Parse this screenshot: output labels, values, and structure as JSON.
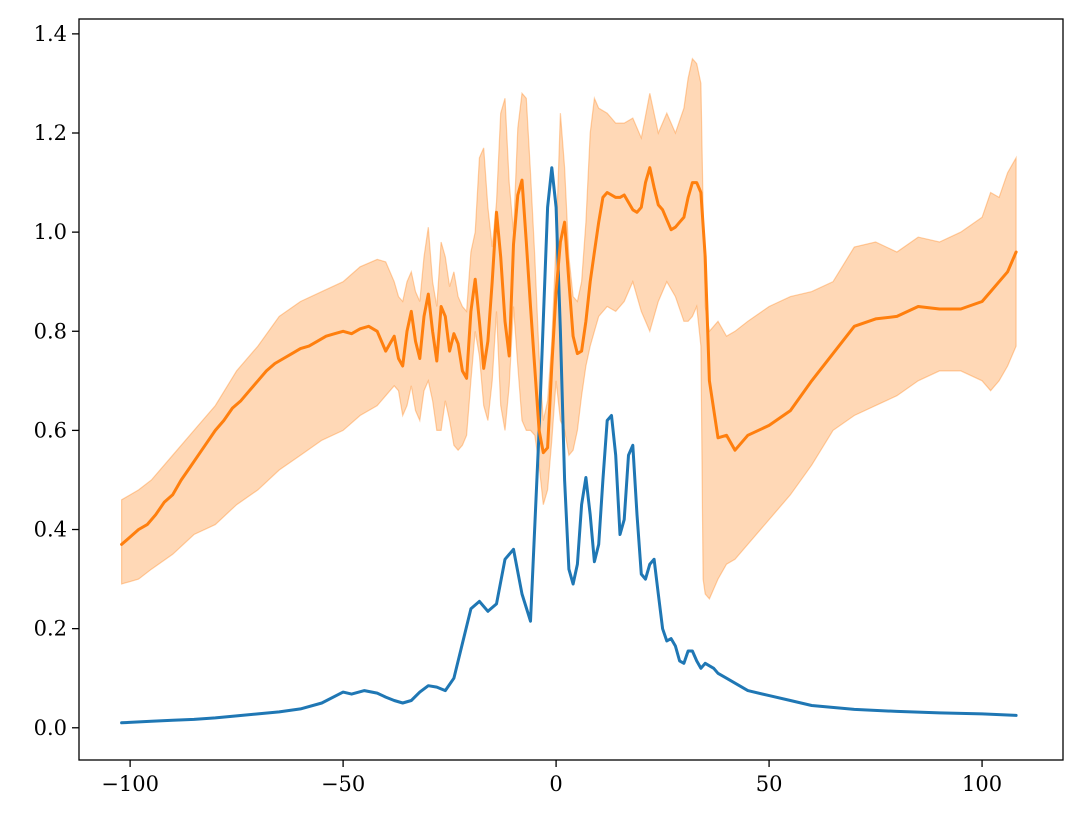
{
  "chart_data": {
    "type": "line",
    "title": "",
    "xlabel": "",
    "ylabel": "",
    "xlim": [
      -112,
      119
    ],
    "ylim": [
      -0.065,
      1.43
    ],
    "x_ticks": [
      -100,
      -50,
      0,
      50,
      100
    ],
    "x_tick_labels": [
      "−100",
      "−50",
      "0",
      "50",
      "100"
    ],
    "y_ticks": [
      0.0,
      0.2,
      0.4,
      0.6,
      0.8,
      1.0,
      1.2,
      1.4
    ],
    "y_tick_labels": [
      "0.0",
      "0.2",
      "0.4",
      "0.6",
      "0.8",
      "1.0",
      "1.2",
      "1.4"
    ],
    "grid": false,
    "legend": "none",
    "colors": {
      "series_1": "#1f77b4",
      "series_2": "#ff7f0e",
      "band": "#ff7f0e"
    },
    "series": [
      {
        "x": [
          -102,
          -95,
          -90,
          -85,
          -80,
          -75,
          -70,
          -65,
          -60,
          -55,
          -50,
          -48,
          -45,
          -42,
          -40,
          -38,
          -36,
          -34,
          -32,
          -30,
          -28,
          -26,
          -24,
          -22,
          -20,
          -18,
          -16,
          -14,
          -12,
          -10,
          -8,
          -6,
          -4,
          -2,
          -1,
          0,
          1,
          2,
          3,
          4,
          5,
          6,
          7,
          8,
          9,
          10,
          11,
          12,
          13,
          14,
          15,
          16,
          17,
          18,
          19,
          20,
          21,
          22,
          23,
          24,
          25,
          26,
          27,
          28,
          29,
          30,
          31,
          32,
          33,
          34,
          35,
          36,
          37,
          38,
          40,
          45,
          50,
          55,
          60,
          70,
          80,
          90,
          100,
          108
        ],
        "values": [
          0.01,
          0.013,
          0.015,
          0.017,
          0.02,
          0.024,
          0.028,
          0.032,
          0.038,
          0.05,
          0.072,
          0.068,
          0.075,
          0.07,
          0.062,
          0.055,
          0.05,
          0.055,
          0.072,
          0.085,
          0.082,
          0.075,
          0.1,
          0.17,
          0.24,
          0.255,
          0.235,
          0.25,
          0.34,
          0.36,
          0.27,
          0.215,
          0.6,
          1.05,
          1.13,
          1.05,
          0.8,
          0.5,
          0.32,
          0.29,
          0.33,
          0.45,
          0.505,
          0.43,
          0.335,
          0.37,
          0.5,
          0.62,
          0.63,
          0.55,
          0.39,
          0.42,
          0.55,
          0.57,
          0.43,
          0.31,
          0.3,
          0.33,
          0.34,
          0.27,
          0.2,
          0.175,
          0.18,
          0.165,
          0.135,
          0.13,
          0.155,
          0.155,
          0.135,
          0.12,
          0.13,
          0.125,
          0.12,
          0.11,
          0.1,
          0.075,
          0.065,
          0.055,
          0.045,
          0.037,
          0.033,
          0.03,
          0.028,
          0.025
        ]
      },
      {
        "x": [
          -102,
          -100,
          -98,
          -96,
          -94,
          -92,
          -90,
          -88,
          -86,
          -84,
          -82,
          -80,
          -78,
          -76,
          -74,
          -72,
          -70,
          -68,
          -66,
          -64,
          -62,
          -60,
          -58,
          -56,
          -54,
          -52,
          -50,
          -48,
          -46,
          -44,
          -42,
          -40,
          -38,
          -37,
          -36,
          -35,
          -34,
          -33,
          -32,
          -31,
          -30,
          -29,
          -28,
          -27,
          -26,
          -25,
          -24,
          -23,
          -22,
          -21,
          -20,
          -19,
          -18,
          -17,
          -16,
          -15,
          -14,
          -13,
          -12,
          -11,
          -10,
          -9,
          -8,
          -7,
          -6,
          -5,
          -4,
          -3,
          -2,
          -1,
          0,
          1,
          2,
          3,
          4,
          5,
          6,
          7,
          8,
          9,
          10,
          11,
          12,
          13,
          14,
          15,
          16,
          17,
          18,
          19,
          20,
          21,
          22,
          23,
          24,
          25,
          26,
          27,
          28,
          29,
          30,
          31,
          32,
          33,
          34,
          35,
          36,
          38,
          40,
          42,
          45,
          50,
          55,
          60,
          65,
          70,
          75,
          80,
          85,
          90,
          95,
          100,
          102,
          104,
          106,
          108
        ],
        "values": [
          0.37,
          0.385,
          0.4,
          0.41,
          0.43,
          0.455,
          0.47,
          0.5,
          0.525,
          0.55,
          0.575,
          0.6,
          0.62,
          0.645,
          0.66,
          0.68,
          0.7,
          0.72,
          0.735,
          0.745,
          0.755,
          0.765,
          0.77,
          0.78,
          0.79,
          0.795,
          0.8,
          0.795,
          0.805,
          0.81,
          0.8,
          0.76,
          0.79,
          0.745,
          0.73,
          0.8,
          0.84,
          0.78,
          0.745,
          0.83,
          0.875,
          0.8,
          0.74,
          0.85,
          0.83,
          0.76,
          0.795,
          0.775,
          0.72,
          0.705,
          0.84,
          0.905,
          0.82,
          0.725,
          0.78,
          0.9,
          1.04,
          0.95,
          0.82,
          0.75,
          0.975,
          1.075,
          1.105,
          0.98,
          0.85,
          0.725,
          0.6,
          0.555,
          0.565,
          0.73,
          0.88,
          0.98,
          1.02,
          0.9,
          0.79,
          0.755,
          0.76,
          0.82,
          0.9,
          0.96,
          1.02,
          1.07,
          1.08,
          1.075,
          1.07,
          1.07,
          1.075,
          1.06,
          1.045,
          1.04,
          1.05,
          1.1,
          1.13,
          1.09,
          1.055,
          1.045,
          1.025,
          1.005,
          1.01,
          1.02,
          1.03,
          1.07,
          1.1,
          1.1,
          1.08,
          0.95,
          0.7,
          0.585,
          0.59,
          0.56,
          0.59,
          0.61,
          0.64,
          0.7,
          0.755,
          0.81,
          0.825,
          0.83,
          0.85,
          0.845,
          0.845,
          0.86,
          0.88,
          0.9,
          0.92,
          0.96
        ]
      }
    ],
    "band": {
      "x": [
        -102,
        -98,
        -95,
        -90,
        -85,
        -80,
        -75,
        -70,
        -65,
        -60,
        -55,
        -50,
        -46,
        -42,
        -40,
        -38,
        -37,
        -36,
        -35,
        -34,
        -33,
        -32,
        -31,
        -30,
        -29,
        -28,
        -27,
        -26,
        -25,
        -24,
        -23,
        -22,
        -21,
        -20,
        -19,
        -18,
        -17,
        -16,
        -15,
        -14,
        -13,
        -12,
        -11,
        -10,
        -9,
        -8,
        -7,
        -6,
        -5,
        -4,
        -3,
        -2,
        -1,
        0,
        1,
        2,
        3,
        4,
        5,
        6,
        7,
        8,
        9,
        10,
        12,
        14,
        16,
        18,
        20,
        22,
        24,
        26,
        28,
        30,
        31,
        32,
        33,
        34,
        34.5,
        35,
        36,
        38,
        40,
        42,
        45,
        50,
        55,
        60,
        65,
        70,
        75,
        80,
        85,
        90,
        95,
        100,
        102,
        104,
        106,
        108
      ],
      "upper": [
        0.46,
        0.48,
        0.5,
        0.55,
        0.6,
        0.65,
        0.72,
        0.77,
        0.83,
        0.86,
        0.88,
        0.9,
        0.93,
        0.945,
        0.94,
        0.9,
        0.87,
        0.86,
        0.9,
        0.92,
        0.88,
        0.86,
        0.95,
        1.01,
        0.9,
        0.85,
        0.98,
        0.95,
        0.89,
        0.92,
        0.87,
        0.85,
        0.84,
        0.96,
        1.0,
        1.15,
        1.17,
        1.05,
        0.97,
        1.06,
        1.24,
        1.27,
        1.1,
        1.0,
        1.21,
        1.28,
        1.27,
        1.12,
        0.95,
        0.75,
        0.62,
        0.66,
        0.78,
        0.98,
        1.24,
        1.13,
        0.95,
        0.87,
        0.86,
        0.9,
        1.02,
        1.2,
        1.27,
        1.25,
        1.24,
        1.22,
        1.22,
        1.23,
        1.19,
        1.28,
        1.2,
        1.24,
        1.2,
        1.25,
        1.31,
        1.35,
        1.34,
        1.3,
        1.05,
        0.85,
        0.8,
        0.82,
        0.79,
        0.8,
        0.82,
        0.85,
        0.87,
        0.88,
        0.9,
        0.97,
        0.98,
        0.96,
        0.99,
        0.98,
        1.0,
        1.03,
        1.08,
        1.07,
        1.12,
        1.15
      ],
      "lower": [
        0.29,
        0.3,
        0.32,
        0.35,
        0.39,
        0.41,
        0.45,
        0.48,
        0.52,
        0.55,
        0.58,
        0.6,
        0.63,
        0.65,
        0.67,
        0.69,
        0.68,
        0.63,
        0.65,
        0.69,
        0.64,
        0.62,
        0.68,
        0.7,
        0.66,
        0.6,
        0.6,
        0.66,
        0.62,
        0.57,
        0.56,
        0.57,
        0.59,
        0.7,
        0.8,
        0.75,
        0.65,
        0.62,
        0.7,
        0.84,
        0.65,
        0.6,
        0.69,
        0.85,
        0.73,
        0.62,
        0.6,
        0.6,
        0.59,
        0.53,
        0.45,
        0.48,
        0.58,
        0.7,
        0.62,
        0.6,
        0.55,
        0.56,
        0.6,
        0.67,
        0.73,
        0.77,
        0.8,
        0.83,
        0.85,
        0.84,
        0.86,
        0.9,
        0.84,
        0.8,
        0.86,
        0.9,
        0.87,
        0.82,
        0.82,
        0.83,
        0.85,
        0.77,
        0.3,
        0.27,
        0.26,
        0.3,
        0.33,
        0.34,
        0.37,
        0.42,
        0.47,
        0.53,
        0.6,
        0.63,
        0.65,
        0.67,
        0.7,
        0.72,
        0.72,
        0.7,
        0.68,
        0.7,
        0.73,
        0.77
      ]
    }
  }
}
